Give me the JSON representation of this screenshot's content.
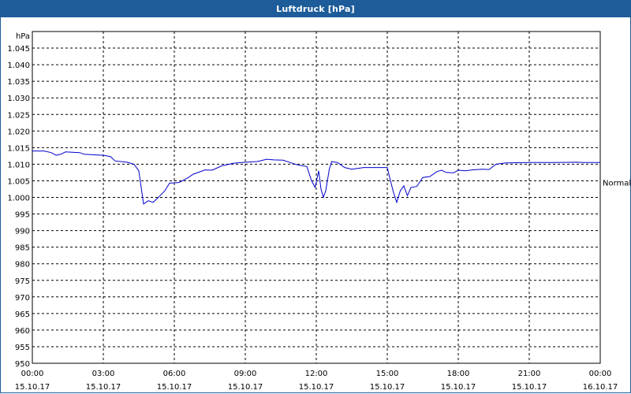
{
  "window": {
    "title": "Luftdruck [hPa]"
  },
  "chart_data": {
    "type": "line",
    "title": "Luftdruck [hPa]",
    "ylabel": "hPa",
    "xlabel": "",
    "ylim": [
      950,
      1050
    ],
    "xlim": [
      0,
      24
    ],
    "grid": true,
    "y_ticks": [
      950,
      955,
      960,
      965,
      970,
      975,
      980,
      985,
      990,
      995,
      1000,
      1005,
      1010,
      1015,
      1020,
      1025,
      1030,
      1035,
      1040,
      1045
    ],
    "y_tick_labels": [
      "950",
      "955",
      "960",
      "965",
      "970",
      "975",
      "980",
      "985",
      "990",
      "995",
      "1.000",
      "1.005",
      "1.010",
      "1.015",
      "1.020",
      "1.025",
      "1.030",
      "1.035",
      "1.040",
      "1.045"
    ],
    "x_ticks": [
      0,
      3,
      6,
      9,
      12,
      15,
      18,
      21,
      24
    ],
    "x_tick_labels": [
      [
        "00:00",
        "15.10.17"
      ],
      [
        "03:00",
        "15.10.17"
      ],
      [
        "06:00",
        "15.10.17"
      ],
      [
        "09:00",
        "15.10.17"
      ],
      [
        "12:00",
        "15.10.17"
      ],
      [
        "15:00",
        "15.10.17"
      ],
      [
        "18:00",
        "15.10.17"
      ],
      [
        "21:00",
        "15.10.17"
      ],
      [
        "00:00",
        "16.10.17"
      ]
    ],
    "right_annotation": {
      "text": "Normal",
      "y": 1004.5
    },
    "line_color": "#0000cc",
    "series": [
      {
        "values": [
          [
            0.0,
            1014
          ],
          [
            0.5,
            1014
          ],
          [
            0.8,
            1013.5
          ],
          [
            1.0,
            1012.7
          ],
          [
            1.2,
            1013
          ],
          [
            1.4,
            1013.7
          ],
          [
            2.0,
            1013.5
          ],
          [
            2.2,
            1013
          ],
          [
            2.7,
            1012.8
          ],
          [
            3.0,
            1012.7
          ],
          [
            3.3,
            1012.3
          ],
          [
            3.5,
            1011
          ],
          [
            4.0,
            1010.6
          ],
          [
            4.3,
            1010
          ],
          [
            4.5,
            1008
          ],
          [
            4.7,
            998
          ],
          [
            4.9,
            999
          ],
          [
            5.1,
            998.5
          ],
          [
            5.3,
            999.8
          ],
          [
            5.6,
            1002
          ],
          [
            5.8,
            1004.3
          ],
          [
            6.2,
            1004.5
          ],
          [
            6.6,
            1006
          ],
          [
            6.8,
            1007
          ],
          [
            7.0,
            1007.5
          ],
          [
            7.3,
            1008.3
          ],
          [
            7.6,
            1008.2
          ],
          [
            8.0,
            1009.5
          ],
          [
            8.5,
            1010.3
          ],
          [
            9.0,
            1010.6
          ],
          [
            9.5,
            1010.8
          ],
          [
            9.9,
            1011.5
          ],
          [
            10.2,
            1011.3
          ],
          [
            10.6,
            1011.2
          ],
          [
            10.9,
            1010.5
          ],
          [
            11.2,
            1009.8
          ],
          [
            11.6,
            1009.3
          ],
          [
            11.8,
            1005
          ],
          [
            11.95,
            1003
          ],
          [
            12.1,
            1008
          ],
          [
            12.2,
            1002.5
          ],
          [
            12.3,
            1000
          ],
          [
            12.4,
            1002
          ],
          [
            12.55,
            1008.5
          ],
          [
            12.65,
            1010.8
          ],
          [
            12.9,
            1010.5
          ],
          [
            13.2,
            1009
          ],
          [
            13.5,
            1008.5
          ],
          [
            14.0,
            1009
          ],
          [
            14.5,
            1009
          ],
          [
            15.0,
            1009
          ],
          [
            15.1,
            1006
          ],
          [
            15.25,
            1001.8
          ],
          [
            15.4,
            998.5
          ],
          [
            15.55,
            1002
          ],
          [
            15.7,
            1003.5
          ],
          [
            15.85,
            1000.5
          ],
          [
            16.0,
            1003
          ],
          [
            16.25,
            1003.3
          ],
          [
            16.5,
            1006
          ],
          [
            16.8,
            1006.3
          ],
          [
            17.1,
            1007.8
          ],
          [
            17.3,
            1008.2
          ],
          [
            17.5,
            1007.5
          ],
          [
            17.8,
            1007.4
          ],
          [
            18.0,
            1008.2
          ],
          [
            18.3,
            1008
          ],
          [
            18.6,
            1008.3
          ],
          [
            19.0,
            1008.5
          ],
          [
            19.3,
            1008.4
          ],
          [
            19.6,
            1010
          ],
          [
            20.0,
            1010.4
          ],
          [
            21.0,
            1010.5
          ],
          [
            22.0,
            1010.5
          ],
          [
            23.0,
            1010.6
          ],
          [
            23.3,
            1010.5
          ],
          [
            24.0,
            1010.5
          ]
        ]
      }
    ]
  }
}
